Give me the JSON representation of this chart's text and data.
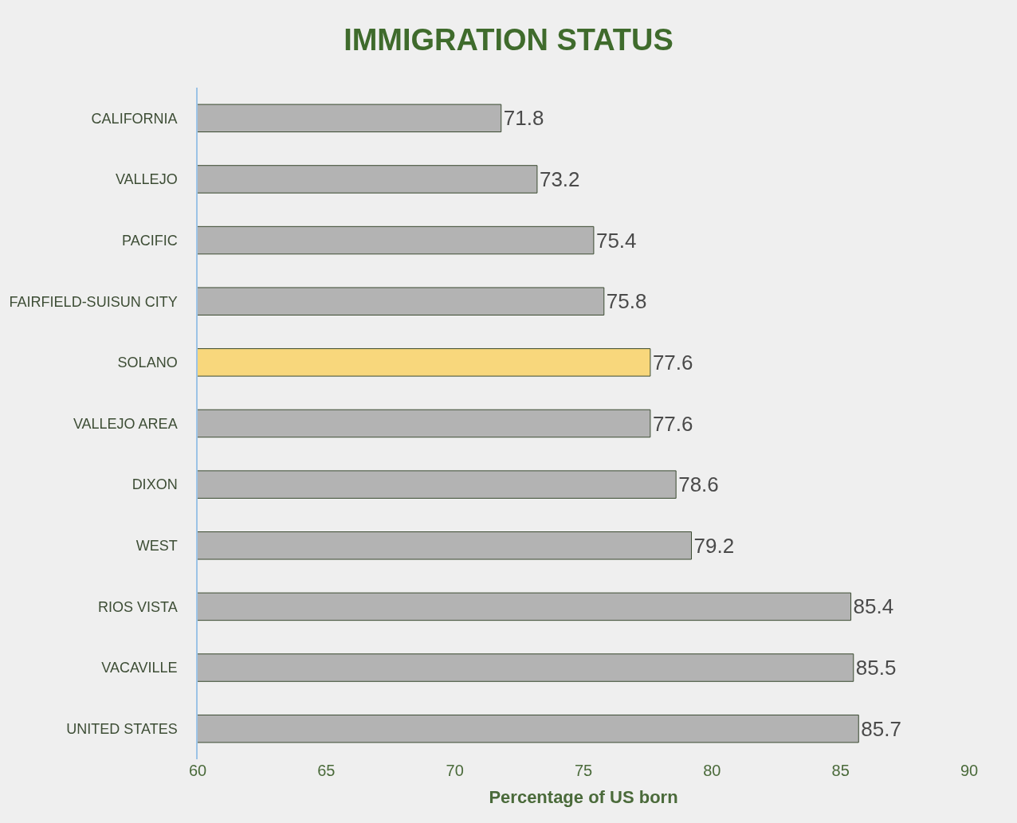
{
  "chart_data": {
    "type": "bar",
    "orientation": "horizontal",
    "title": "IMMIGRATION STATUS",
    "xlabel": "Percentage of US born",
    "categories": [
      "CALIFORNIA",
      "VALLEJO",
      "PACIFIC",
      "FAIRFIELD-SUISUN CITY",
      "SOLANO",
      "VALLEJO AREA",
      "DIXON",
      "WEST",
      "RIOS VISTA",
      "VACAVILLE",
      "UNITED STATES"
    ],
    "values": [
      71.8,
      73.2,
      75.4,
      75.8,
      77.6,
      77.6,
      78.6,
      79.2,
      85.4,
      85.5,
      85.7
    ],
    "colors": [
      "#b3b3b3",
      "#b3b3b3",
      "#b3b3b3",
      "#b3b3b3",
      "#f8d77c",
      "#b3b3b3",
      "#b3b3b3",
      "#b3b3b3",
      "#b3b3b3",
      "#b3b3b3",
      "#b3b3b3"
    ],
    "xlim": [
      60,
      90
    ],
    "xticks": [
      60,
      65,
      70,
      75,
      80,
      85,
      90
    ],
    "grid": false,
    "data_labels": true
  }
}
